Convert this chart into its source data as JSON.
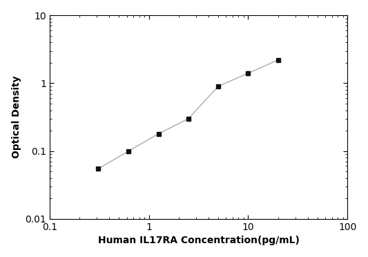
{
  "x": [
    0.31,
    0.625,
    1.25,
    2.5,
    5,
    10,
    20
  ],
  "y": [
    0.055,
    0.1,
    0.18,
    0.3,
    0.9,
    1.4,
    2.2
  ],
  "xlim": [
    0.1,
    100
  ],
  "ylim": [
    0.01,
    10
  ],
  "xlabel": "Human IL17RA Concentration(pg/mL)",
  "ylabel": "Optical Density",
  "line_color": "#aaaaaa",
  "marker": "s",
  "marker_color": "#111111",
  "marker_size": 5,
  "linewidth": 1.0,
  "background_color": "#ffffff",
  "spine_color": "#000000",
  "x_tick_labels": [
    "0.1",
    "1",
    "10",
    "100"
  ],
  "x_ticks": [
    0.1,
    1,
    10,
    100
  ],
  "y_tick_labels": [
    "0.01",
    "0.1",
    "1",
    "10"
  ],
  "y_ticks": [
    0.01,
    0.1,
    1,
    10
  ]
}
